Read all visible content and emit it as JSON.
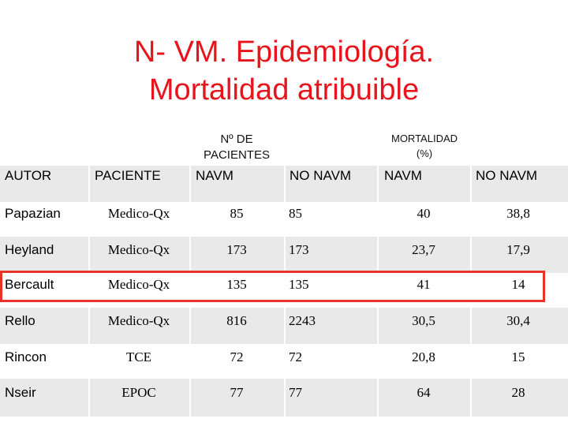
{
  "title": {
    "line1": "N- VM. Epidemiología.",
    "line2": "Mortalidad atribuible"
  },
  "group_headers": {
    "pacientes_line1": "Nº DE",
    "pacientes_line2": "PACIENTES",
    "mortalidad_line1": "MORTALIDAD",
    "mortalidad_line2": "(%)"
  },
  "table": {
    "columns": [
      "AUTOR",
      "PACIENTE",
      "NAVM",
      "NO NAVM",
      "NAVM",
      "NO NAVM"
    ],
    "rows": [
      [
        "Papazian",
        "Medico-Qx",
        "85",
        "85",
        "40",
        "38,8"
      ],
      [
        "Heyland",
        "Medico-Qx",
        "173",
        "173",
        "23,7",
        "17,9"
      ],
      [
        "Bercault",
        "Medico-Qx",
        "135",
        "135",
        "41",
        "14"
      ],
      [
        "Rello",
        "Medico-Qx",
        "816",
        "2243",
        "30,5",
        "30,4"
      ],
      [
        "Rincon",
        "TCE",
        "72",
        "72",
        "20,8",
        "15"
      ],
      [
        "Nseir",
        "EPOC",
        "77",
        "77",
        "64",
        "28"
      ]
    ],
    "highlighted_row": "Bercault",
    "highlight_color": "#e8332a"
  },
  "colors": {
    "title": "#e8141c",
    "band": "#e9e9e9"
  }
}
